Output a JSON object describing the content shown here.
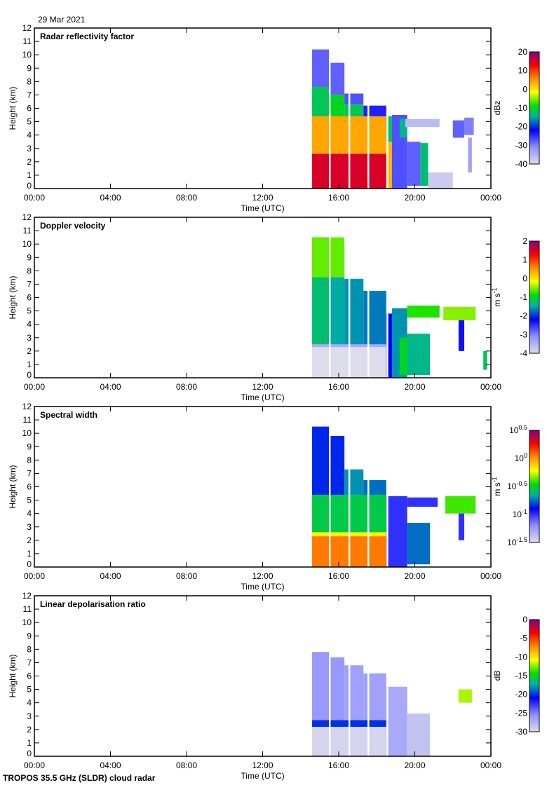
{
  "date": "29 Mar 2021",
  "footer": "TROPOS 35.5 GHz (SLDR) cloud radar",
  "chart_data": [
    {
      "type": "heatmap",
      "title": "Radar reflectivity factor",
      "xlabel": "Time (UTC)",
      "ylabel": "Height (km)",
      "xlim": [
        0,
        24
      ],
      "ylim": [
        0,
        12
      ],
      "xticks": [
        "00:00",
        "04:00",
        "08:00",
        "12:00",
        "16:00",
        "20:00",
        "00:00"
      ],
      "yticks": [
        "0",
        "1",
        "2",
        "3",
        "4",
        "5",
        "6",
        "7",
        "8",
        "9",
        "10",
        "11",
        "12"
      ],
      "colorbar": {
        "unit": "dBz",
        "unit_sup": "",
        "range": [
          -40,
          20
        ],
        "ticks": [
          {
            "base": "20",
            "sup": ""
          },
          {
            "base": "10",
            "sup": ""
          },
          {
            "base": "0",
            "sup": ""
          },
          {
            "base": "-10",
            "sup": ""
          },
          {
            "base": "-20",
            "sup": ""
          },
          {
            "base": "-30",
            "sup": ""
          },
          {
            "base": "-40",
            "sup": ""
          }
        ]
      },
      "data_gaps_hours": [
        15.52,
        16.55,
        17.55,
        18.55
      ],
      "segments": [
        [
          14.6,
          18.5,
          0,
          2.6,
          15
        ],
        [
          18.5,
          18.8,
          0,
          3.5,
          3
        ],
        [
          14.6,
          18.5,
          2.6,
          5.4,
          4
        ],
        [
          14.6,
          15.5,
          5.4,
          7.6,
          -12
        ],
        [
          14.6,
          15.5,
          7.6,
          10.4,
          -28
        ],
        [
          15.5,
          16.3,
          5.4,
          7.0,
          -10
        ],
        [
          16.3,
          16.3,
          0,
          0,
          0
        ],
        [
          15.5,
          16.3,
          7.0,
          9.4,
          -28
        ],
        [
          16.3,
          17.3,
          5.4,
          6.3,
          -12
        ],
        [
          16.3,
          17.3,
          6.3,
          7.1,
          -27
        ],
        [
          17.3,
          18.5,
          5.4,
          6.2,
          -24
        ],
        [
          18.5,
          18.8,
          3.5,
          5.4,
          -12
        ],
        [
          18.8,
          19.6,
          0,
          5.5,
          -27
        ],
        [
          19.2,
          19.6,
          3.8,
          5.2,
          -14
        ],
        [
          19.6,
          20.3,
          0.2,
          3.5,
          -28
        ],
        [
          20.3,
          20.7,
          0.2,
          3.4,
          -13
        ],
        [
          19.5,
          21.3,
          4.6,
          5.2,
          -36
        ],
        [
          20.7,
          22.0,
          0,
          1.2,
          -38
        ],
        [
          22.0,
          22.6,
          3.8,
          5.1,
          -28
        ],
        [
          22.6,
          23.1,
          4.0,
          5.3,
          -30
        ],
        [
          22.8,
          23.0,
          1.2,
          3.8,
          -33
        ]
      ]
    },
    {
      "type": "heatmap",
      "title": "Doppler velocity",
      "xlabel": "Time (UTC)",
      "ylabel": "Height (km)",
      "xlim": [
        0,
        24
      ],
      "ylim": [
        0,
        12
      ],
      "xticks": [
        "00:00",
        "04:00",
        "08:00",
        "12:00",
        "16:00",
        "20:00",
        "00:00"
      ],
      "yticks": [
        "0",
        "1",
        "2",
        "3",
        "4",
        "5",
        "6",
        "7",
        "8",
        "9",
        "10",
        "11",
        "12"
      ],
      "colorbar": {
        "unit": "m s",
        "unit_sup": "-1",
        "range": [
          -4,
          2
        ],
        "ticks": [
          {
            "base": "2",
            "sup": ""
          },
          {
            "base": "1",
            "sup": ""
          },
          {
            "base": "0",
            "sup": ""
          },
          {
            "base": "-1",
            "sup": ""
          },
          {
            "base": "-2",
            "sup": ""
          },
          {
            "base": "-3",
            "sup": ""
          },
          {
            "base": "-4",
            "sup": ""
          }
        ]
      },
      "data_gaps_hours": [
        15.52,
        16.55,
        17.55,
        18.55
      ],
      "segments": [
        [
          14.6,
          18.5,
          0,
          2.4,
          -4
        ],
        [
          14.6,
          18.5,
          2.3,
          2.5,
          -3.4
        ],
        [
          14.6,
          15.5,
          2.5,
          10.5,
          -1.3
        ],
        [
          15.5,
          16.3,
          2.5,
          9.9,
          -1.5
        ],
        [
          16.3,
          17.3,
          2.5,
          7.4,
          -1.6
        ],
        [
          17.3,
          18.5,
          2.5,
          6.5,
          -1.7
        ],
        [
          14.6,
          16.3,
          7.5,
          10.5,
          -0.6
        ],
        [
          18.5,
          18.8,
          0,
          4.8,
          -2.2
        ],
        [
          18.8,
          19.6,
          0,
          5.2,
          -1.6
        ],
        [
          19.2,
          20.0,
          0.2,
          3.0,
          -1.0
        ],
        [
          19.6,
          20.8,
          0.2,
          3.3,
          -1.4
        ],
        [
          19.6,
          21.3,
          4.5,
          5.4,
          -0.8
        ],
        [
          21.5,
          23.2,
          4.3,
          5.3,
          -0.5
        ],
        [
          22.3,
          22.6,
          2.0,
          4.3,
          -2.3
        ],
        [
          23.6,
          23.8,
          0.6,
          2.0,
          -1.2
        ]
      ]
    },
    {
      "type": "heatmap",
      "title": "Spectral width",
      "xlabel": "Time (UTC)",
      "ylabel": "Height (km)",
      "xlim": [
        0,
        24
      ],
      "ylim": [
        0,
        12
      ],
      "xticks": [
        "00:00",
        "04:00",
        "08:00",
        "12:00",
        "16:00",
        "20:00",
        "00:00"
      ],
      "yticks": [
        "0",
        "1",
        "2",
        "3",
        "4",
        "5",
        "6",
        "7",
        "8",
        "9",
        "10",
        "11",
        "12"
      ],
      "colorbar": {
        "unit": "m s",
        "unit_sup": "-1",
        "range": [
          -1.5,
          0.5
        ],
        "ticks": [
          {
            "base": "10",
            "sup": "0.5"
          },
          {
            "base": "10",
            "sup": "0"
          },
          {
            "base": "10",
            "sup": "-0.5"
          },
          {
            "base": "10",
            "sup": "-1"
          },
          {
            "base": "10",
            "sup": "-1.5"
          }
        ]
      },
      "data_gaps_hours": [
        15.52,
        16.55,
        17.55,
        18.55
      ],
      "segments": [
        [
          14.6,
          18.5,
          0,
          2.3,
          0.05
        ],
        [
          14.6,
          18.5,
          2.3,
          2.6,
          -0.2
        ],
        [
          14.6,
          18.5,
          2.6,
          5.4,
          -0.55
        ],
        [
          14.6,
          15.5,
          5.4,
          10.5,
          -0.85
        ],
        [
          15.5,
          16.3,
          5.4,
          9.8,
          -0.85
        ],
        [
          16.3,
          17.3,
          5.4,
          7.3,
          -0.7
        ],
        [
          17.3,
          18.5,
          5.4,
          6.5,
          -0.75
        ],
        [
          18.5,
          19.6,
          0,
          5.3,
          -1.0
        ],
        [
          19.6,
          20.8,
          0.2,
          3.3,
          -0.75
        ],
        [
          19.6,
          21.2,
          4.5,
          5.2,
          -1.0
        ],
        [
          21.6,
          23.2,
          4.0,
          5.3,
          -0.4
        ],
        [
          22.3,
          22.6,
          2.0,
          4.0,
          -1.0
        ]
      ]
    },
    {
      "type": "heatmap",
      "title": "Linear depolarisation ratio",
      "xlabel": "Time (UTC)",
      "ylabel": "Height (km)",
      "xlim": [
        0,
        24
      ],
      "ylim": [
        0,
        12
      ],
      "xticks": [
        "00:00",
        "04:00",
        "08:00",
        "12:00",
        "16:00",
        "20:00",
        "00:00"
      ],
      "yticks": [
        "0",
        "1",
        "2",
        "3",
        "4",
        "5",
        "6",
        "7",
        "8",
        "9",
        "10",
        "11",
        "12"
      ],
      "colorbar": {
        "unit": "dB",
        "unit_sup": "",
        "range": [
          -30,
          0
        ],
        "ticks": [
          {
            "base": "0",
            "sup": ""
          },
          {
            "base": "-5",
            "sup": ""
          },
          {
            "base": "-10",
            "sup": ""
          },
          {
            "base": "-15",
            "sup": ""
          },
          {
            "base": "-20",
            "sup": ""
          },
          {
            "base": "-25",
            "sup": ""
          },
          {
            "base": "-30",
            "sup": ""
          }
        ]
      },
      "data_gaps_hours": [
        15.52,
        16.55,
        17.55,
        18.55
      ],
      "segments": [
        [
          14.6,
          18.5,
          0,
          2.2,
          -29.5
        ],
        [
          14.6,
          18.5,
          2.2,
          2.7,
          -20
        ],
        [
          14.6,
          15.5,
          2.7,
          7.8,
          -26
        ],
        [
          15.5,
          16.3,
          2.7,
          7.4,
          -26
        ],
        [
          16.3,
          17.3,
          2.7,
          6.8,
          -26.5
        ],
        [
          17.3,
          18.5,
          2.7,
          6.2,
          -26.5
        ],
        [
          18.5,
          19.6,
          0,
          5.2,
          -27
        ],
        [
          19.6,
          20.8,
          0,
          3.2,
          -28.5
        ],
        [
          22.3,
          23.0,
          4.0,
          5.0,
          -12
        ]
      ]
    }
  ]
}
